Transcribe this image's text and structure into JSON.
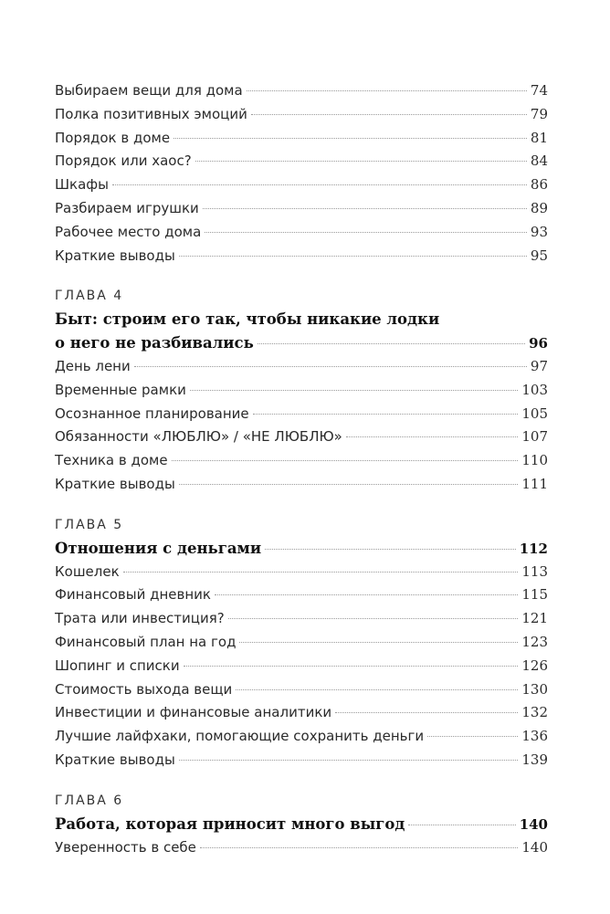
{
  "sections": [
    {
      "chapter": "",
      "title_lines": [],
      "title_page": "",
      "entries": [
        {
          "title": "Выбираем вещи для дома",
          "page": "74"
        },
        {
          "title": "Полка позитивных эмоций",
          "page": "79"
        },
        {
          "title": "Порядок в доме",
          "page": "81"
        },
        {
          "title": "Порядок или хаос?",
          "page": "84"
        },
        {
          "title": "Шкафы",
          "page": "86"
        },
        {
          "title": "Разбираем игрушки",
          "page": "89"
        },
        {
          "title": "Рабочее место дома",
          "page": "93"
        },
        {
          "title": "Краткие выводы",
          "page": "95"
        }
      ]
    },
    {
      "chapter": "ГЛАВА 4",
      "title_lines": [
        "Быт: строим его так, чтобы никакие лодки",
        "о него не разбивались"
      ],
      "title_page": "96",
      "entries": [
        {
          "title": "День лени",
          "page": "97"
        },
        {
          "title": "Временные рамки",
          "page": "103"
        },
        {
          "title": "Осознанное планирование",
          "page": "105"
        },
        {
          "title": "Обязанности «ЛЮБЛЮ» / «НЕ ЛЮБЛЮ»",
          "page": "107"
        },
        {
          "title": "Техника в доме",
          "page": "110"
        },
        {
          "title": "Краткие выводы",
          "page": "111"
        }
      ]
    },
    {
      "chapter": "ГЛАВА 5",
      "title_lines": [
        "Отношения с деньгами"
      ],
      "title_page": "112",
      "entries": [
        {
          "title": "Кошелек",
          "page": "113"
        },
        {
          "title": "Финансовый дневник",
          "page": "115"
        },
        {
          "title": "Трата или инвестиция?",
          "page": "121"
        },
        {
          "title": "Финансовый план на год",
          "page": "123"
        },
        {
          "title": "Шопинг и списки",
          "page": "126"
        },
        {
          "title": "Стоимость выхода вещи",
          "page": "130"
        },
        {
          "title": "Инвестиции и финансовые аналитики",
          "page": "132"
        },
        {
          "title": "Лучшие лайфхаки, помогающие сохранить деньги",
          "page": "136"
        },
        {
          "title": "Краткие выводы",
          "page": "139"
        }
      ]
    },
    {
      "chapter": "ГЛАВА 6",
      "title_lines": [
        "Работа, которая приносит много выгод"
      ],
      "title_page": "140",
      "entries": [
        {
          "title": "Уверенность в себе",
          "page": "140"
        }
      ]
    }
  ]
}
